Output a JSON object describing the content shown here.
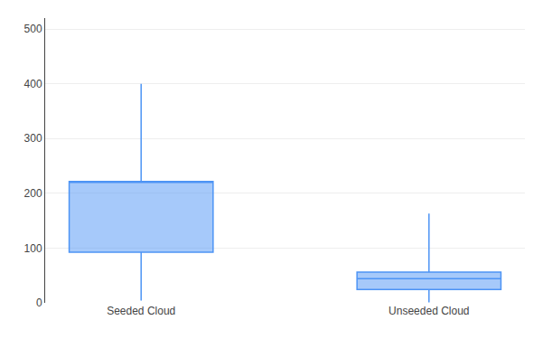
{
  "chart_data": {
    "type": "box",
    "categories": [
      "Seeded Cloud",
      "Unseeded Cloud"
    ],
    "whislo": [
      4.1,
      1.0
    ],
    "q1": [
      92.4,
      24.4
    ],
    "med": [
      221.6,
      44.2
    ],
    "q3": [
      221.6,
      56.0
    ],
    "whishi": [
      400.0,
      163.0
    ],
    "color": "#4d94f5",
    "ylim": [
      0,
      520
    ],
    "yticks": [
      0,
      100,
      200,
      300,
      400,
      500
    ],
    "grid": true
  }
}
